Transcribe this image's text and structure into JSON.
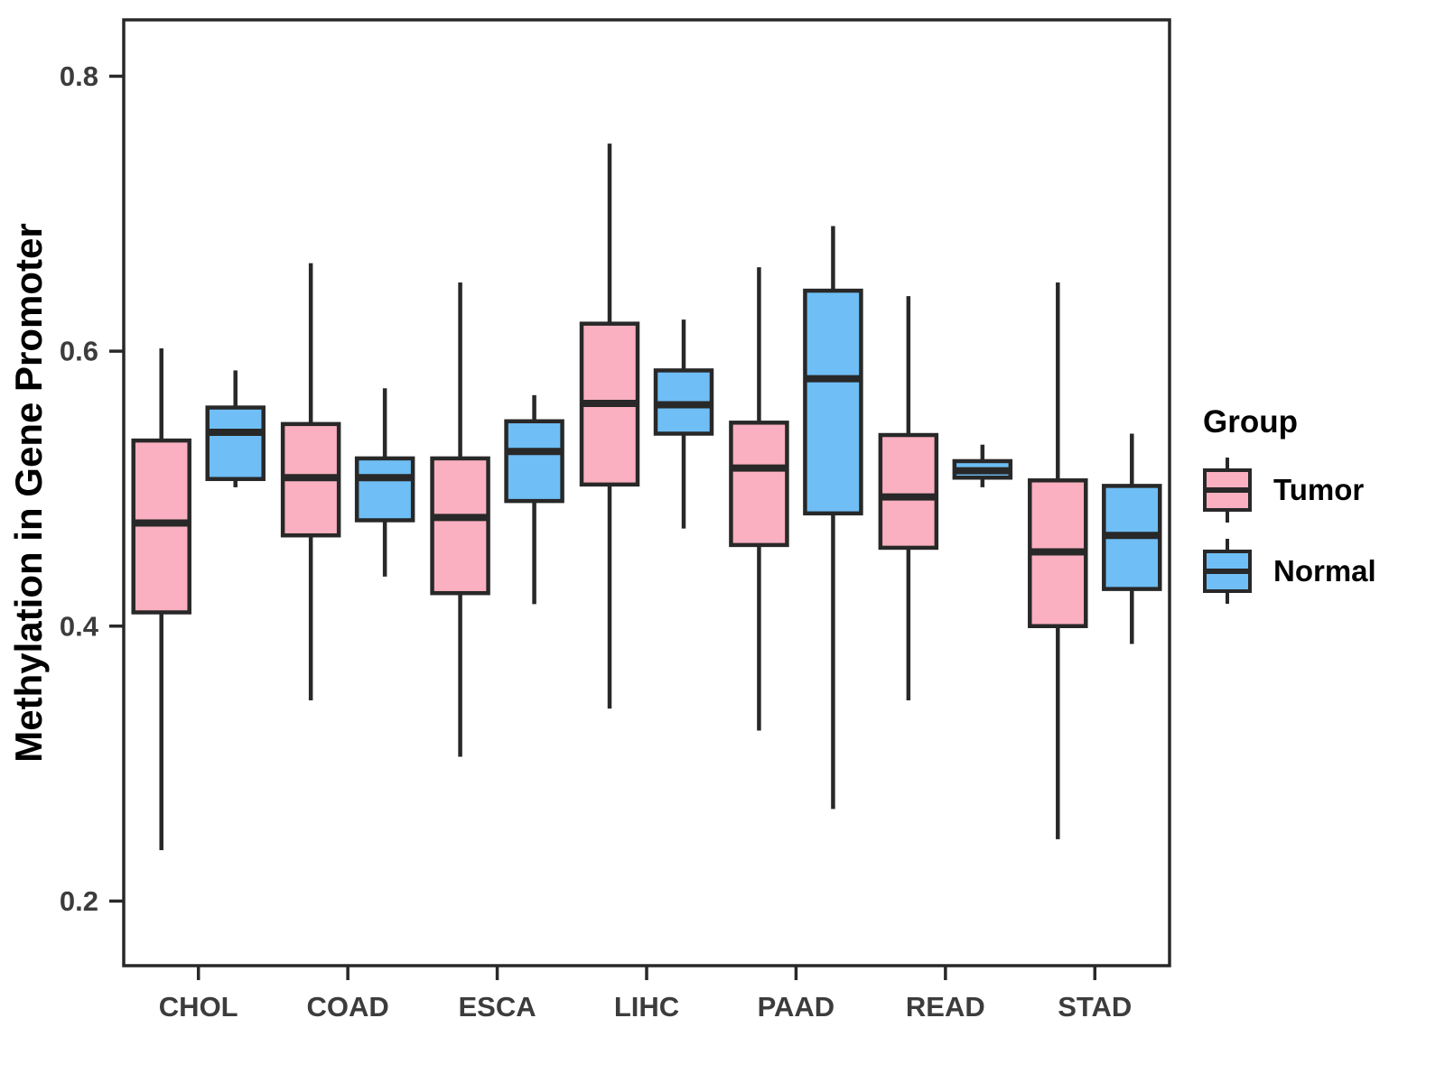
{
  "chart_data": {
    "type": "box",
    "title": "",
    "xlabel": "",
    "ylabel": "Methylation in Gene Promoter",
    "legend_title": "Group",
    "legend_position": "right",
    "grid": false,
    "ylim": [
      0.153,
      0.841
    ],
    "yticks": [
      0.2,
      0.4,
      0.6,
      0.8
    ],
    "ytick_labels": [
      "0.2",
      "0.4",
      "0.6",
      "0.8"
    ],
    "categories": [
      "CHOL",
      "COAD",
      "ESCA",
      "LIHC",
      "PAAD",
      "READ",
      "STAD"
    ],
    "stroke_color": "#282828",
    "series": [
      {
        "name": "Tumor",
        "color": "#FAB0C0",
        "boxes": [
          {
            "low": 0.237,
            "q1": 0.41,
            "median": 0.475,
            "q3": 0.535,
            "high": 0.602
          },
          {
            "low": 0.346,
            "q1": 0.466,
            "median": 0.508,
            "q3": 0.547,
            "high": 0.664
          },
          {
            "low": 0.305,
            "q1": 0.424,
            "median": 0.479,
            "q3": 0.522,
            "high": 0.65
          },
          {
            "low": 0.34,
            "q1": 0.503,
            "median": 0.562,
            "q3": 0.62,
            "high": 0.751
          },
          {
            "low": 0.324,
            "q1": 0.459,
            "median": 0.515,
            "q3": 0.548,
            "high": 0.661
          },
          {
            "low": 0.346,
            "q1": 0.457,
            "median": 0.494,
            "q3": 0.539,
            "high": 0.64
          },
          {
            "low": 0.245,
            "q1": 0.4,
            "median": 0.454,
            "q3": 0.506,
            "high": 0.65
          }
        ]
      },
      {
        "name": "Normal",
        "color": "#6FBEF5",
        "boxes": [
          {
            "low": 0.501,
            "q1": 0.507,
            "median": 0.541,
            "q3": 0.559,
            "high": 0.586
          },
          {
            "low": 0.436,
            "q1": 0.477,
            "median": 0.508,
            "q3": 0.522,
            "high": 0.573
          },
          {
            "low": 0.416,
            "q1": 0.491,
            "median": 0.527,
            "q3": 0.549,
            "high": 0.568
          },
          {
            "low": 0.471,
            "q1": 0.54,
            "median": 0.561,
            "q3": 0.586,
            "high": 0.623
          },
          {
            "low": 0.267,
            "q1": 0.482,
            "median": 0.58,
            "q3": 0.644,
            "high": 0.691
          },
          {
            "low": 0.501,
            "q1": 0.508,
            "median": 0.513,
            "q3": 0.52,
            "high": 0.532
          },
          {
            "low": 0.387,
            "q1": 0.427,
            "median": 0.466,
            "q3": 0.502,
            "high": 0.54
          }
        ]
      }
    ]
  }
}
